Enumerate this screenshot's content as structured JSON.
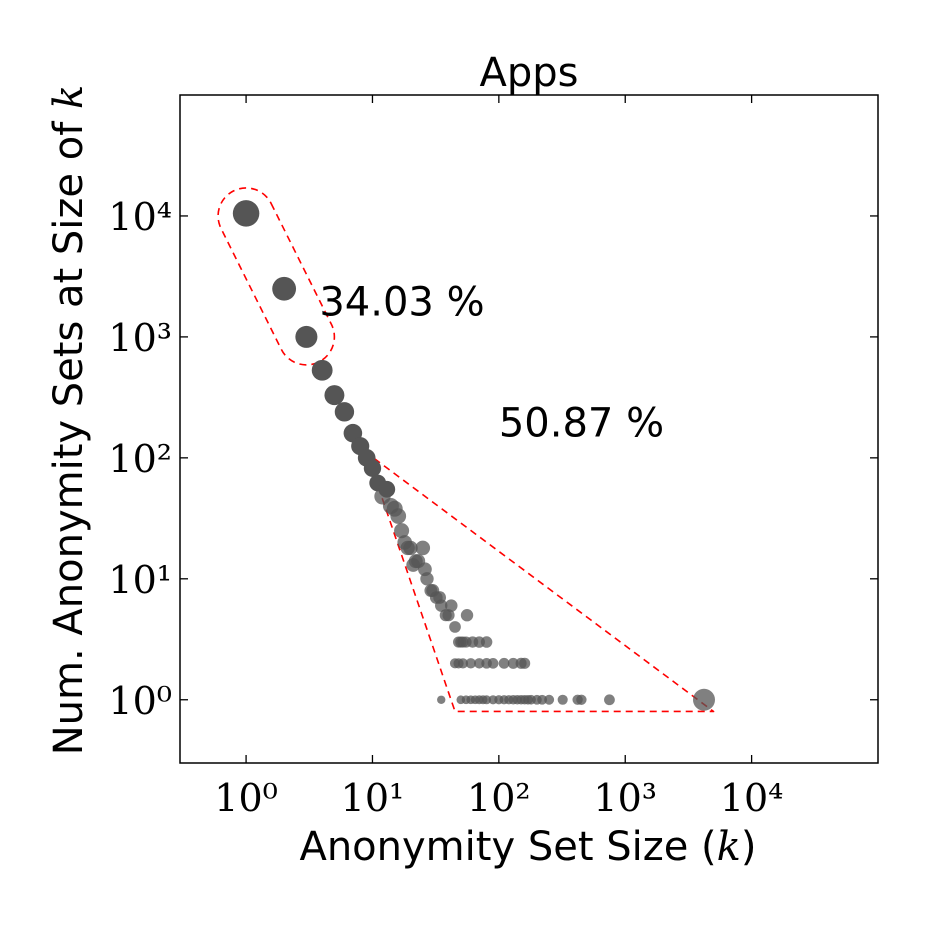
{
  "chart_data": {
    "type": "scatter",
    "title": "Apps",
    "xlabel": "Anonymity Set Size (k)",
    "ylabel": "Num. Anonymity Sets at Size of k",
    "xscale": "log",
    "yscale": "log",
    "xlim": [
      0.3,
      100000
    ],
    "ylim": [
      0.3,
      100000
    ],
    "xticks": [
      1,
      10,
      100,
      1000,
      10000
    ],
    "yticks": [
      1,
      10,
      100,
      1000,
      10000
    ],
    "xtick_labels": [
      "10⁰",
      "10¹",
      "10²",
      "10³",
      "10⁴"
    ],
    "ytick_labels": [
      "10⁰",
      "10¹",
      "10²",
      "10³",
      "10⁴"
    ],
    "grid": false,
    "marker_color": "#555555",
    "annotation_color": "#ff0000",
    "annotations": [
      {
        "text": "34.03 %",
        "x": 3.8,
        "y": 1500
      },
      {
        "text": "50.87 %",
        "x": 100,
        "y": 150
      }
    ],
    "regions": [
      {
        "label": "34.03 %",
        "shape": "capsule",
        "from": [
          1,
          10000
        ],
        "to": [
          3,
          1000
        ]
      },
      {
        "label": "50.87 %",
        "shape": "triangle",
        "vertices": [
          [
            9,
            110
          ],
          [
            45,
            0.8
          ],
          [
            5000,
            0.8
          ]
        ]
      }
    ],
    "points": [
      {
        "x": 1,
        "y": 10500
      },
      {
        "x": 2,
        "y": 2500
      },
      {
        "x": 3,
        "y": 1000
      },
      {
        "x": 4,
        "y": 530
      },
      {
        "x": 5,
        "y": 330
      },
      {
        "x": 6,
        "y": 240
      },
      {
        "x": 7,
        "y": 160
      },
      {
        "x": 8,
        "y": 125
      },
      {
        "x": 9,
        "y": 100
      },
      {
        "x": 10,
        "y": 82
      },
      {
        "x": 11,
        "y": 62
      },
      {
        "x": 12,
        "y": 48
      },
      {
        "x": 13,
        "y": 55
      },
      {
        "x": 14,
        "y": 40
      },
      {
        "x": 15,
        "y": 38
      },
      {
        "x": 16,
        "y": 33
      },
      {
        "x": 17,
        "y": 25
      },
      {
        "x": 18,
        "y": 20
      },
      {
        "x": 19,
        "y": 18
      },
      {
        "x": 20,
        "y": 18
      },
      {
        "x": 21,
        "y": 13
      },
      {
        "x": 22,
        "y": 14
      },
      {
        "x": 23,
        "y": 14
      },
      {
        "x": 25,
        "y": 18
      },
      {
        "x": 26,
        "y": 12
      },
      {
        "x": 27,
        "y": 10
      },
      {
        "x": 29,
        "y": 8
      },
      {
        "x": 30,
        "y": 8
      },
      {
        "x": 32,
        "y": 7
      },
      {
        "x": 34,
        "y": 7
      },
      {
        "x": 35,
        "y": 6
      },
      {
        "x": 38,
        "y": 5
      },
      {
        "x": 40,
        "y": 5
      },
      {
        "x": 42,
        "y": 6
      },
      {
        "x": 45,
        "y": 4
      },
      {
        "x": 48,
        "y": 3
      },
      {
        "x": 50,
        "y": 3
      },
      {
        "x": 52,
        "y": 3
      },
      {
        "x": 55,
        "y": 3
      },
      {
        "x": 56,
        "y": 5
      },
      {
        "x": 62,
        "y": 3
      },
      {
        "x": 70,
        "y": 3
      },
      {
        "x": 80,
        "y": 3
      },
      {
        "x": 35,
        "y": 1
      },
      {
        "x": 45,
        "y": 2
      },
      {
        "x": 48,
        "y": 2
      },
      {
        "x": 52,
        "y": 2
      },
      {
        "x": 60,
        "y": 2
      },
      {
        "x": 70,
        "y": 2
      },
      {
        "x": 80,
        "y": 2
      },
      {
        "x": 90,
        "y": 2
      },
      {
        "x": 110,
        "y": 2
      },
      {
        "x": 130,
        "y": 2
      },
      {
        "x": 150,
        "y": 2
      },
      {
        "x": 160,
        "y": 2
      },
      {
        "x": 50,
        "y": 1
      },
      {
        "x": 55,
        "y": 1
      },
      {
        "x": 60,
        "y": 1
      },
      {
        "x": 65,
        "y": 1
      },
      {
        "x": 70,
        "y": 1
      },
      {
        "x": 75,
        "y": 1
      },
      {
        "x": 80,
        "y": 1
      },
      {
        "x": 90,
        "y": 1
      },
      {
        "x": 100,
        "y": 1
      },
      {
        "x": 110,
        "y": 1
      },
      {
        "x": 120,
        "y": 1
      },
      {
        "x": 130,
        "y": 1
      },
      {
        "x": 140,
        "y": 1
      },
      {
        "x": 150,
        "y": 1
      },
      {
        "x": 160,
        "y": 1
      },
      {
        "x": 170,
        "y": 1
      },
      {
        "x": 180,
        "y": 1
      },
      {
        "x": 200,
        "y": 1
      },
      {
        "x": 220,
        "y": 1
      },
      {
        "x": 250,
        "y": 1
      },
      {
        "x": 320,
        "y": 1
      },
      {
        "x": 420,
        "y": 1
      },
      {
        "x": 450,
        "y": 1
      },
      {
        "x": 750,
        "y": 1
      },
      {
        "x": 4200,
        "y": 1
      }
    ]
  }
}
